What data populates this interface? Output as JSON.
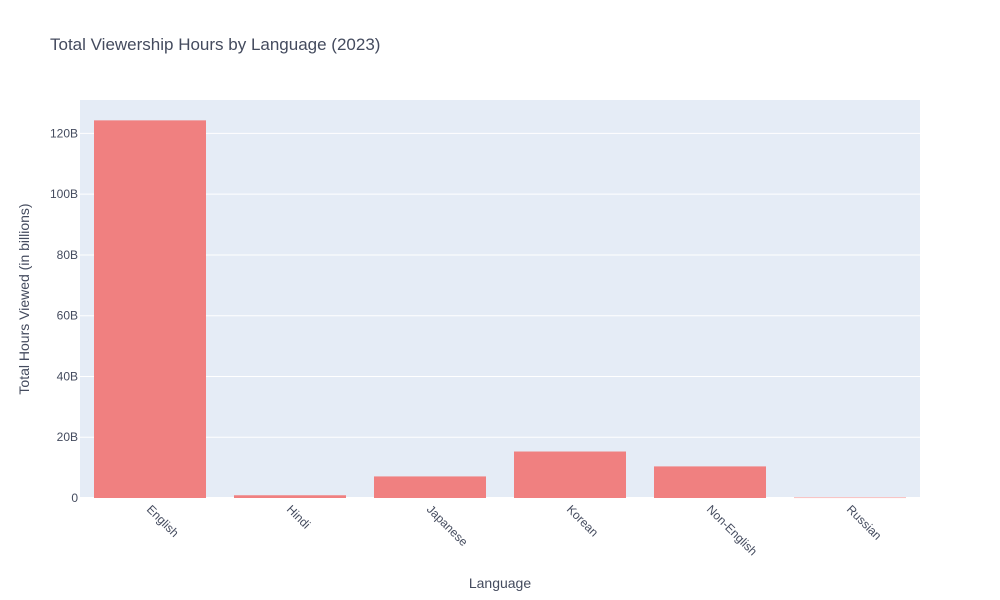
{
  "chart_data": {
    "type": "bar",
    "title": "Total Viewership Hours by Language (2023)",
    "xlabel": "Language",
    "ylabel": "Total Hours Viewed (in billions)",
    "categories": [
      "English",
      "Hindi",
      "Japanese",
      "Korean",
      "Non-English",
      "Russian"
    ],
    "values": [
      124.3,
      0.9,
      7.1,
      15.3,
      10.4,
      0.15
    ],
    "value_unit": "billion hours",
    "ylim": [
      0,
      131
    ],
    "yticks": [
      0,
      20,
      40,
      60,
      80,
      100,
      120
    ],
    "ytick_labels": [
      "0",
      "20B",
      "40B",
      "60B",
      "80B",
      "100B",
      "120B"
    ],
    "grid": true,
    "colors": {
      "bar": "#f08080",
      "plot_bg": "#e5ecf6",
      "grid": "#ffffff",
      "text": "#444b5e"
    }
  }
}
